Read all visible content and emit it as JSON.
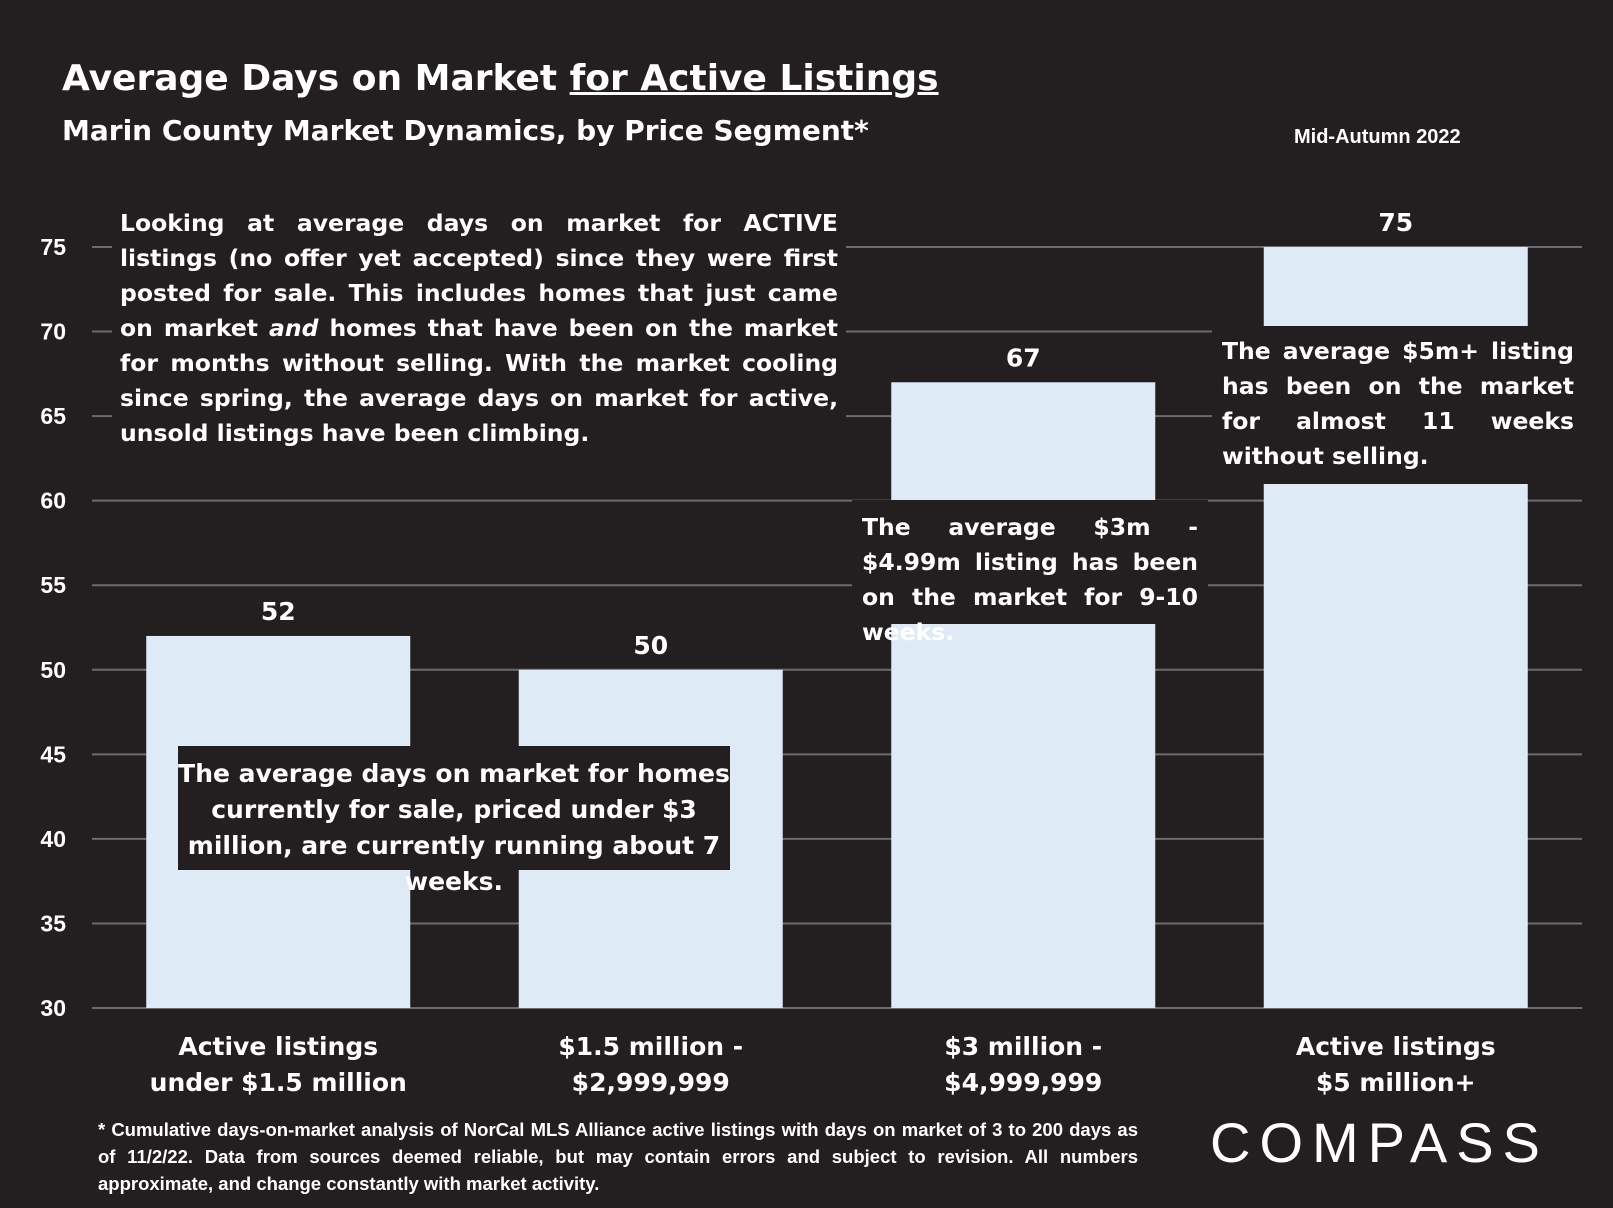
{
  "header": {
    "title_main": "Average Days on Market ",
    "title_underlined": "for Active Listings",
    "subtitle": "Marin County Market Dynamics, by Price Segment*",
    "period": "Mid-Autumn 2022"
  },
  "chart_data": {
    "type": "bar",
    "categories": [
      [
        "Active listings",
        "under $1.5 million"
      ],
      [
        "$1.5 million -",
        "$2,999,999"
      ],
      [
        "$3 million -",
        "$4,999,999"
      ],
      [
        "Active listings",
        "$5 million+"
      ]
    ],
    "values": [
      52,
      50,
      67,
      75
    ],
    "ylim": [
      30,
      75
    ],
    "yticks": [
      30,
      35,
      40,
      45,
      50,
      55,
      60,
      65,
      70,
      75
    ],
    "grid": true,
    "bar_color": "#deebf7",
    "grid_color": "#6b6b6b"
  },
  "annotations": {
    "top_note_parts": [
      "Looking at average days on market for ACTIVE listings (no offer yet accepted) since they were first posted for sale. This includes homes that just came on market ",
      "and",
      " homes that have been on the market for months without selling. With the market cooling since spring, the average days on market for active, unsold listings have been climbing."
    ],
    "mid_note": "The average days on market for homes currently for sale, priced under $3 million, are currently running about 7 weeks.",
    "note_3m": "The average $3m - $4.99m listing has been on the market for 9-10 weeks.",
    "note_5m": "The average $5m+ listing has been on the market for almost 11 weeks without selling."
  },
  "footnote": "* Cumulative days-on-market analysis of NorCal MLS Alliance active listings with days on market of 3 to 200 days as of 11/2/22. Data from sources deemed reliable, but may contain errors and subject to revision. All numbers approximate, and change constantly with market activity.",
  "logo": "COMPASS",
  "colors": {
    "background": "#231f20",
    "text": "#ffffff"
  }
}
